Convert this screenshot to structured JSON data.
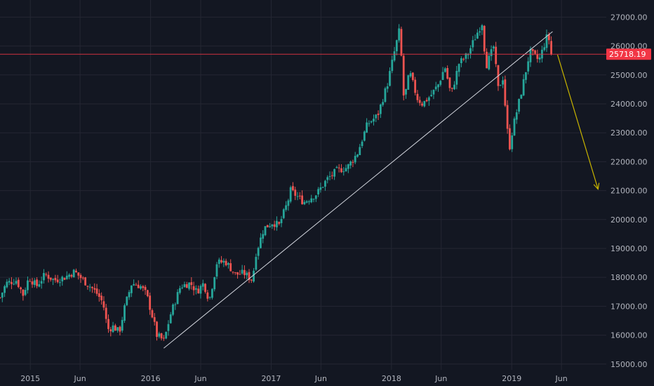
{
  "chart_data": {
    "type": "candlestick",
    "title": "",
    "timeframe": "weekly",
    "y_ticks": [
      15000,
      16000,
      17000,
      18000,
      19000,
      20000,
      21000,
      22000,
      23000,
      24000,
      25000,
      26000,
      27000
    ],
    "y_tick_labels": [
      "15000.00",
      "16000.00",
      "17000.00",
      "18000.00",
      "19000.00",
      "20000.00",
      "21000.00",
      "22000.00",
      "23000.00",
      "24000.00",
      "25000.00",
      "26000.00",
      "27000.00"
    ],
    "x_ticks": [
      {
        "date": "2015-01-01",
        "label": "2015"
      },
      {
        "date": "2015-06-01",
        "label": "Jun"
      },
      {
        "date": "2016-01-01",
        "label": "2016"
      },
      {
        "date": "2016-06-01",
        "label": "Jun"
      },
      {
        "date": "2017-01-01",
        "label": "2017"
      },
      {
        "date": "2017-06-01",
        "label": "Jun"
      },
      {
        "date": "2018-01-01",
        "label": "2018"
      },
      {
        "date": "2018-06-01",
        "label": "Jun"
      },
      {
        "date": "2019-01-01",
        "label": "2019"
      },
      {
        "date": "2019-06-01",
        "label": "Jun"
      }
    ],
    "x_range": [
      "2014-10-01",
      "2019-10-15"
    ],
    "y_range": [
      14800,
      27350
    ],
    "last_price": 25718.19,
    "last_price_label": "25718.19",
    "trendline": {
      "start": {
        "date": "2016-02-10",
        "price": 15550
      },
      "end": {
        "date": "2019-05-05",
        "price": 26500
      }
    },
    "projection_arrow": {
      "start": {
        "date": "2019-05-20",
        "price": 25700
      },
      "end": {
        "date": "2019-09-20",
        "price": 21050
      }
    },
    "close_path": [
      [
        "2014-10-01",
        17300
      ],
      [
        "2014-10-20",
        17800
      ],
      [
        "2014-11-20",
        17900
      ],
      [
        "2014-12-10",
        17400
      ],
      [
        "2014-12-28",
        18000
      ],
      [
        "2015-01-20",
        17700
      ],
      [
        "2015-02-15",
        18100
      ],
      [
        "2015-03-15",
        17900
      ],
      [
        "2015-04-15",
        18000
      ],
      [
        "2015-05-15",
        18200
      ],
      [
        "2015-06-20",
        17800
      ],
      [
        "2015-07-10",
        17600
      ],
      [
        "2015-07-25",
        17400
      ],
      [
        "2015-08-10",
        17100
      ],
      [
        "2015-08-24",
        16200
      ],
      [
        "2015-09-10",
        16300
      ],
      [
        "2015-09-28",
        16100
      ],
      [
        "2015-10-15",
        17000
      ],
      [
        "2015-11-05",
        17800
      ],
      [
        "2015-12-01",
        17700
      ],
      [
        "2015-12-20",
        17400
      ],
      [
        "2016-01-10",
        16500
      ],
      [
        "2016-01-20",
        16000
      ],
      [
        "2016-02-11",
        15800
      ],
      [
        "2016-03-01",
        16700
      ],
      [
        "2016-04-01",
        17700
      ],
      [
        "2016-05-01",
        17800
      ],
      [
        "2016-05-20",
        17500
      ],
      [
        "2016-06-10",
        17800
      ],
      [
        "2016-06-27",
        17200
      ],
      [
        "2016-07-20",
        18500
      ],
      [
        "2016-08-15",
        18550
      ],
      [
        "2016-09-15",
        18100
      ],
      [
        "2016-10-10",
        18150
      ],
      [
        "2016-11-05",
        17900
      ],
      [
        "2016-11-15",
        18800
      ],
      [
        "2016-12-10",
        19700
      ],
      [
        "2017-01-05",
        19900
      ],
      [
        "2017-01-25",
        19800
      ],
      [
        "2017-02-20",
        20600
      ],
      [
        "2017-03-01",
        21000
      ],
      [
        "2017-04-10",
        20600
      ],
      [
        "2017-05-20",
        20900
      ],
      [
        "2017-06-20",
        21400
      ],
      [
        "2017-07-20",
        21700
      ],
      [
        "2017-08-20",
        21800
      ],
      [
        "2017-09-20",
        22300
      ],
      [
        "2017-10-20",
        23300
      ],
      [
        "2017-11-20",
        23600
      ],
      [
        "2017-12-20",
        24700
      ],
      [
        "2018-01-10",
        25800
      ],
      [
        "2018-01-26",
        26600
      ],
      [
        "2018-02-08",
        24100
      ],
      [
        "2018-02-25",
        25100
      ],
      [
        "2018-03-20",
        24200
      ],
      [
        "2018-04-05",
        24000
      ],
      [
        "2018-05-01",
        24300
      ],
      [
        "2018-05-25",
        24700
      ],
      [
        "2018-06-12",
        25300
      ],
      [
        "2018-07-01",
        24300
      ],
      [
        "2018-07-25",
        25400
      ],
      [
        "2018-08-20",
        25700
      ],
      [
        "2018-09-20",
        26500
      ],
      [
        "2018-10-03",
        26800
      ],
      [
        "2018-10-15",
        25300
      ],
      [
        "2018-11-08",
        26000
      ],
      [
        "2018-11-20",
        24500
      ],
      [
        "2018-12-05",
        24900
      ],
      [
        "2018-12-24",
        22400
      ],
      [
        "2019-01-05",
        23200
      ],
      [
        "2019-02-01",
        24500
      ],
      [
        "2019-02-25",
        25800
      ],
      [
        "2019-03-25",
        25500
      ],
      [
        "2019-04-20",
        26400
      ],
      [
        "2019-05-06",
        25718
      ]
    ],
    "colors": {
      "background": "#131722",
      "grid": "#242733",
      "up": "#26a69a",
      "down": "#ef5350",
      "trendline": "#d1d4dc",
      "projection_arrow": "#c8b400",
      "price_line": "#f23645",
      "axis_text": "#b2b5be"
    }
  }
}
